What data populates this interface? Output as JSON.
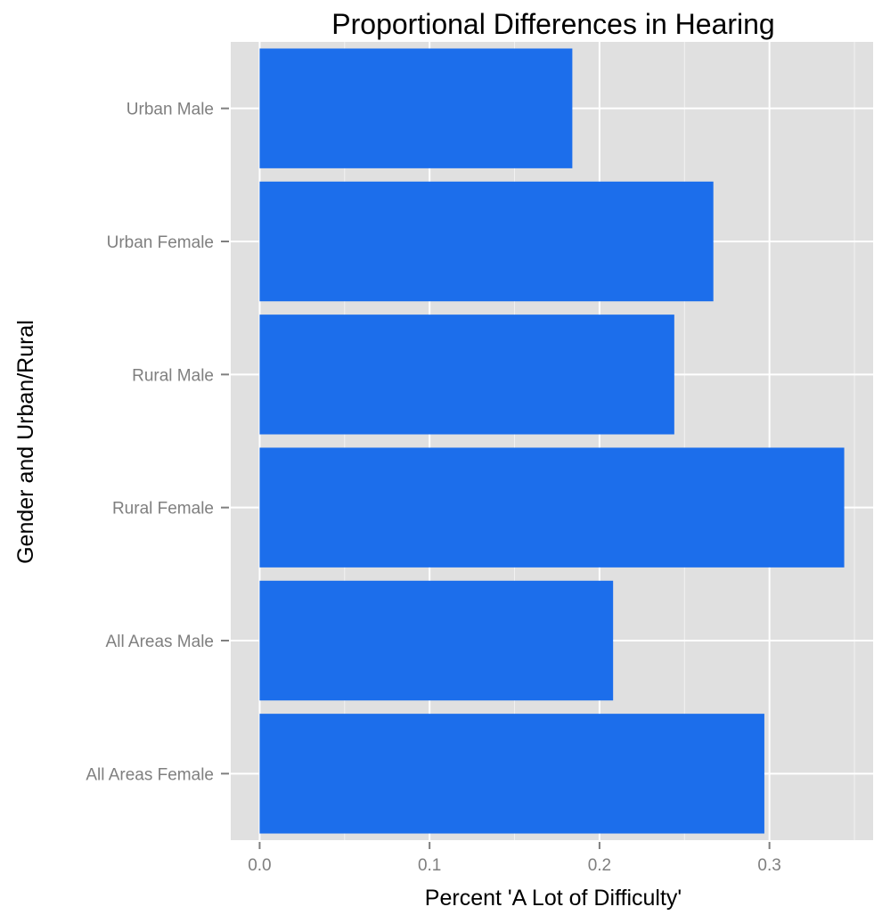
{
  "chart_data": {
    "type": "bar",
    "orientation": "horizontal",
    "title": "Proportional Differences in Hearing",
    "xlabel": "Percent 'A Lot of Difficulty'",
    "ylabel": "Gender and Urban/Rural",
    "categories": [
      "Urban Male",
      "Urban Female",
      "Rural Male",
      "Rural Female",
      "All Areas Male",
      "All Areas Female"
    ],
    "values": [
      0.184,
      0.267,
      0.244,
      0.344,
      0.208,
      0.297
    ],
    "xlim": [
      -0.017,
      0.361
    ],
    "xticks": [
      0.0,
      0.1,
      0.2,
      0.3
    ],
    "xtick_labels": [
      "0.0",
      "0.1",
      "0.2",
      "0.3"
    ],
    "grid": true,
    "colors": {
      "bar": "#1c6eeb",
      "panel": "#e0e0e0",
      "grid": "#ffffff"
    }
  }
}
